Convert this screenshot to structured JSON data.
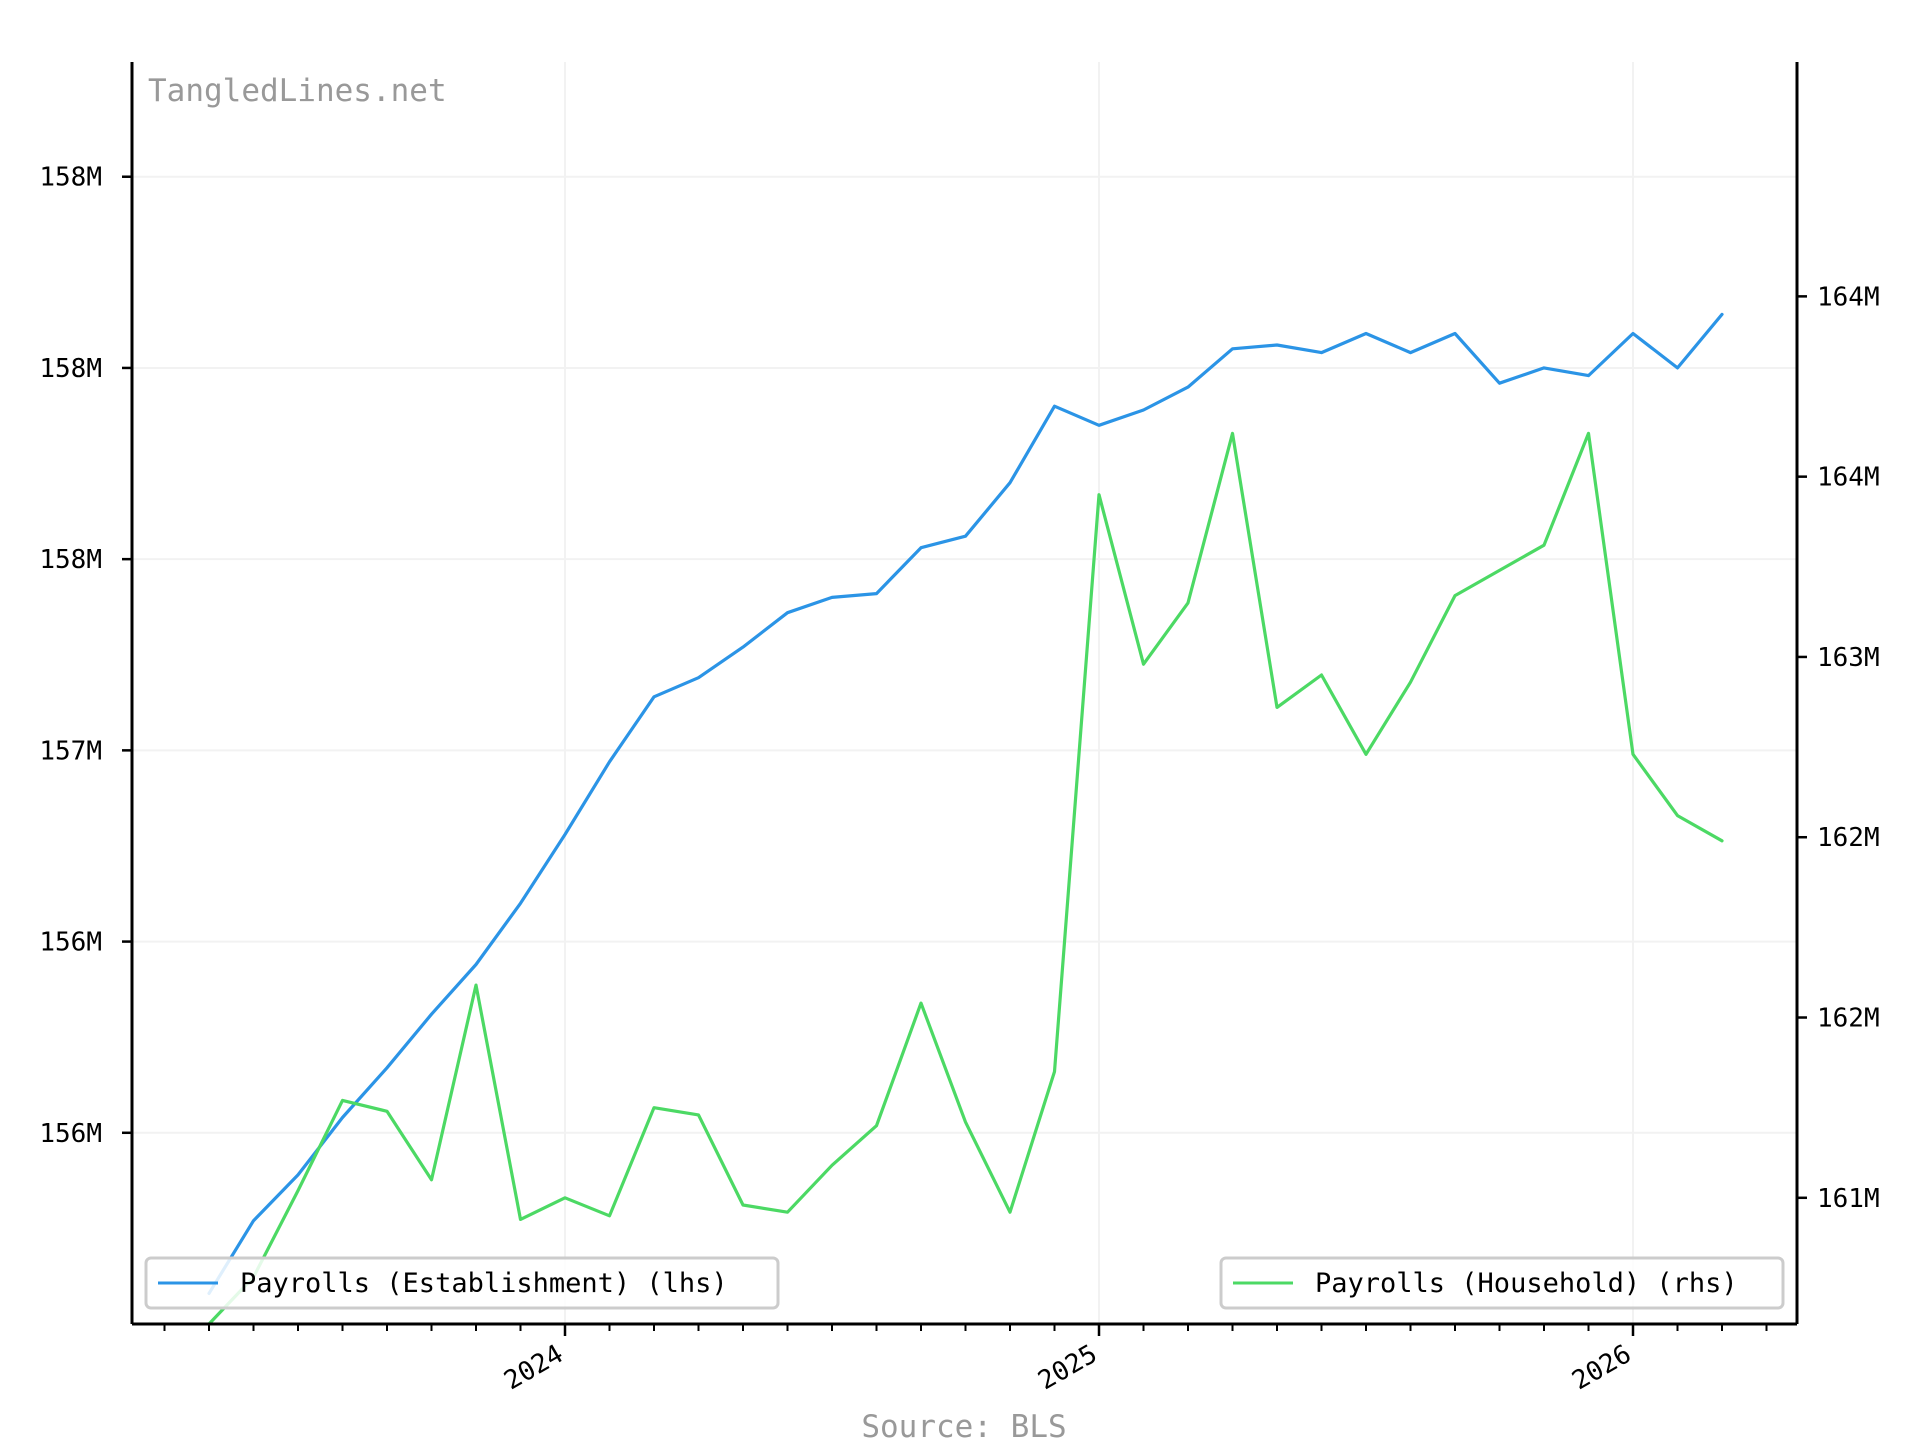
{
  "watermark": "TangledLines.net",
  "source": "Source: BLS",
  "colors": {
    "establishment": "#2b94e6",
    "household": "#4cd964",
    "grid": "#f2f2f2",
    "axis": "#000000",
    "muted": "#999999"
  },
  "chart_data": {
    "type": "line",
    "title": "",
    "xlabel": "",
    "ylabel": "",
    "x": [
      "2023-05",
      "2023-06",
      "2023-07",
      "2023-08",
      "2023-09",
      "2023-10",
      "2023-11",
      "2023-12",
      "2024-01",
      "2024-02",
      "2024-03",
      "2024-04",
      "2024-05",
      "2024-06",
      "2024-07",
      "2024-08",
      "2024-09",
      "2024-10",
      "2024-11",
      "2024-12",
      "2025-01",
      "2025-02",
      "2025-03",
      "2025-04",
      "2025-05",
      "2025-06",
      "2025-07",
      "2025-08",
      "2025-09",
      "2025-10",
      "2025-11",
      "2025-12",
      "2026-01",
      "2026-02",
      "2026-03"
    ],
    "x_ticks": [
      "2024",
      "2025",
      "2026"
    ],
    "x_tick_dates": [
      "2024-01",
      "2025-01",
      "2026-01"
    ],
    "grid": true,
    "legend_placement": "bottom",
    "left_axis": {
      "tick_labels": [
        "156M",
        "156M",
        "157M",
        "158M",
        "158M",
        "158M"
      ],
      "tick_values": [
        155.5,
        156.0,
        156.5,
        157.0,
        157.5,
        158.0
      ],
      "ylim": [
        155.0,
        158.3
      ]
    },
    "right_axis": {
      "tick_labels": [
        "161M",
        "162M",
        "162M",
        "163M",
        "164M",
        "164M"
      ],
      "tick_values": [
        161.0,
        161.5,
        162.0,
        162.5,
        163.0,
        163.5
      ],
      "ylim": [
        160.65,
        164.15
      ]
    },
    "series": [
      {
        "name": "Payrolls (Establishment) (lhs)",
        "axis": "left",
        "color": "#2b94e6",
        "values": [
          155.08,
          155.27,
          155.39,
          155.54,
          155.67,
          155.81,
          155.94,
          156.1,
          156.28,
          156.47,
          156.64,
          156.69,
          156.77,
          156.86,
          156.9,
          156.91,
          157.03,
          157.06,
          157.2,
          157.4,
          157.35,
          157.39,
          157.45,
          157.55,
          157.56,
          157.54,
          157.59,
          157.54,
          157.59,
          157.46,
          157.5,
          157.48,
          157.59,
          157.5,
          157.64
        ]
      },
      {
        "name": "Payrolls (Household) (rhs)",
        "axis": "right",
        "color": "#4cd964",
        "values": [
          160.65,
          160.78,
          161.02,
          161.27,
          161.24,
          161.05,
          161.59,
          160.94,
          161.0,
          160.95,
          161.25,
          161.23,
          160.98,
          160.96,
          161.09,
          161.2,
          161.54,
          161.21,
          160.96,
          161.35,
          162.95,
          162.48,
          162.65,
          163.12,
          162.36,
          162.45,
          162.23,
          162.43,
          162.67,
          162.74,
          162.81,
          163.12,
          162.23,
          162.06,
          161.99
        ]
      }
    ]
  }
}
